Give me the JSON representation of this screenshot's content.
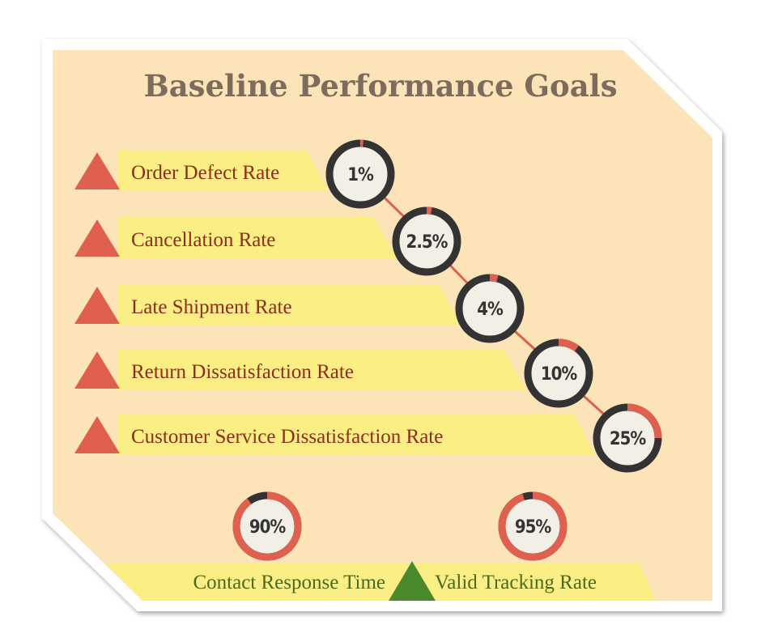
{
  "title": "Baseline Performance Goals",
  "colors": {
    "card": "#ffffff",
    "background": "#fde4b8",
    "band": "#fbee84",
    "red": "#e0604f",
    "ring_dark": "#333333",
    "green": "#4a8a2c",
    "label_red": "#8e2d17",
    "label_green": "#4c6a1a"
  },
  "metrics": [
    {
      "label": "Order Defect Rate",
      "value": "1%",
      "fraction": 0.01,
      "icon": "triangle-up-red"
    },
    {
      "label": "Cancellation Rate",
      "value": "2.5%",
      "fraction": 0.025,
      "icon": "triangle-up-red"
    },
    {
      "label": "Late Shipment Rate",
      "value": "4%",
      "fraction": 0.04,
      "icon": "triangle-up-red"
    },
    {
      "label": "Return Dissatisfaction Rate",
      "value": "10%",
      "fraction": 0.1,
      "icon": "triangle-up-red"
    },
    {
      "label": "Customer Service Dissatisfaction Rate",
      "value": "25%",
      "fraction": 0.25,
      "icon": "triangle-up-red"
    }
  ],
  "bottom": [
    {
      "label": "Contact Response Time",
      "value": "90%",
      "fraction": 0.9
    },
    {
      "label": "Valid Tracking Rate",
      "value": "95%",
      "fraction": 0.95
    }
  ],
  "bottom_icon": "triangle-up-green"
}
